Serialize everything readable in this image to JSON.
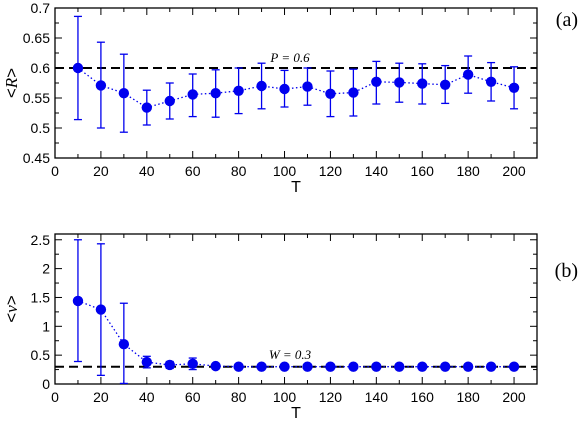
{
  "chart_data": [
    {
      "type": "line",
      "panel_label": "(a)",
      "xlabel": "T",
      "ylabel_parts": [
        "<",
        "R",
        ">"
      ],
      "xlim": [
        0,
        210
      ],
      "ylim": [
        0.45,
        0.7
      ],
      "x_ticks": [
        0,
        20,
        40,
        60,
        80,
        100,
        120,
        140,
        160,
        180,
        200
      ],
      "y_ticks": [
        0.45,
        0.5,
        0.55,
        0.6,
        0.65,
        0.7
      ],
      "y_tick_labels": [
        "0.45",
        "0.5",
        "0.55",
        "0.6",
        "0.65",
        "0.7"
      ],
      "reference_line": {
        "y": 0.6,
        "label": "P = 0.6"
      },
      "x": [
        10,
        20,
        30,
        40,
        50,
        60,
        70,
        80,
        90,
        100,
        110,
        120,
        130,
        140,
        150,
        160,
        170,
        180,
        190,
        200
      ],
      "y": [
        0.6,
        0.571,
        0.558,
        0.534,
        0.545,
        0.556,
        0.558,
        0.562,
        0.57,
        0.565,
        0.569,
        0.557,
        0.559,
        0.577,
        0.576,
        0.574,
        0.572,
        0.589,
        0.577,
        0.567
      ],
      "y_err_low": [
        0.514,
        0.5,
        0.493,
        0.505,
        0.515,
        0.519,
        0.518,
        0.524,
        0.532,
        0.535,
        0.538,
        0.519,
        0.52,
        0.54,
        0.543,
        0.54,
        0.541,
        0.558,
        0.545,
        0.532
      ],
      "y_err_high": [
        0.686,
        0.643,
        0.623,
        0.563,
        0.575,
        0.59,
        0.597,
        0.6,
        0.608,
        0.596,
        0.6,
        0.595,
        0.598,
        0.611,
        0.608,
        0.607,
        0.604,
        0.62,
        0.609,
        0.602
      ],
      "color": "#0000ee",
      "grid": false
    },
    {
      "type": "line",
      "panel_label": "(b)",
      "xlabel": "T",
      "ylabel_parts": [
        "<",
        "v",
        ">"
      ],
      "xlim": [
        0,
        210
      ],
      "ylim": [
        0,
        2.6
      ],
      "x_ticks": [
        0,
        20,
        40,
        60,
        80,
        100,
        120,
        140,
        160,
        180,
        200
      ],
      "y_ticks": [
        0,
        0.5,
        1,
        1.5,
        2,
        2.5
      ],
      "y_tick_labels": [
        "0",
        "0.5",
        "1",
        "1.5",
        "2",
        "2.5"
      ],
      "reference_line": {
        "y": 0.3,
        "label": "W = 0.3"
      },
      "x": [
        10,
        20,
        30,
        40,
        50,
        60,
        70,
        80,
        90,
        100,
        110,
        120,
        130,
        140,
        150,
        160,
        170,
        180,
        190,
        200
      ],
      "y": [
        1.44,
        1.29,
        0.69,
        0.38,
        0.33,
        0.35,
        0.31,
        0.3,
        0.3,
        0.3,
        0.3,
        0.3,
        0.3,
        0.3,
        0.3,
        0.3,
        0.3,
        0.3,
        0.3,
        0.3
      ],
      "y_err_low": [
        0.39,
        0.15,
        0.01,
        0.28,
        0.27,
        0.25,
        0.28,
        0.28,
        0.28,
        0.28,
        0.28,
        0.28,
        0.28,
        0.28,
        0.28,
        0.28,
        0.28,
        0.28,
        0.28,
        0.28
      ],
      "y_err_high": [
        2.5,
        2.43,
        1.4,
        0.48,
        0.39,
        0.45,
        0.34,
        0.32,
        0.32,
        0.32,
        0.32,
        0.32,
        0.32,
        0.32,
        0.32,
        0.32,
        0.32,
        0.32,
        0.32,
        0.32
      ],
      "color": "#0000ee",
      "grid": false
    }
  ]
}
